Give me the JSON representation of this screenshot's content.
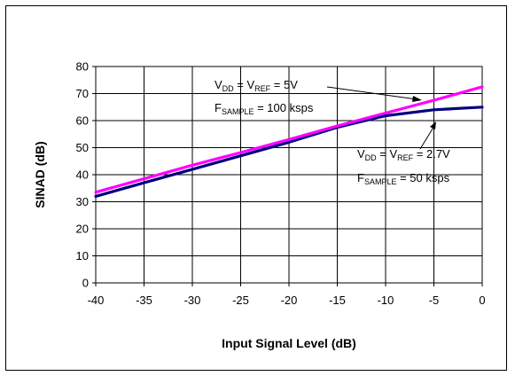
{
  "chart_data": {
    "type": "line",
    "xlabel": "Input Signal Level (dB)",
    "ylabel": "SINAD (dB)",
    "xlim": [
      -40,
      0
    ],
    "ylim": [
      0,
      80
    ],
    "x_ticks": [
      "-40",
      "-35",
      "-30",
      "-25",
      "-20",
      "-15",
      "-10",
      "-5",
      "0"
    ],
    "y_ticks": [
      "0",
      "10",
      "20",
      "30",
      "40",
      "50",
      "60",
      "70",
      "80"
    ],
    "grid": true,
    "series": [
      {
        "name": "VDD = VREF = 5V, FSAMPLE = 100 ksps",
        "color": "#ff00ff",
        "x": [
          -40,
          -35,
          -30,
          -25,
          -20,
          -15,
          -10,
          -5,
          0
        ],
        "y": [
          33.5,
          38.5,
          43.5,
          48.2,
          53,
          58,
          62.8,
          67.5,
          72.5
        ]
      },
      {
        "name": "VDD = VREF = 2.7V, FSAMPLE = 50 ksps",
        "color": "#000080",
        "x": [
          -40,
          -35,
          -30,
          -25,
          -20,
          -15,
          -10,
          -5,
          0
        ],
        "y": [
          32,
          37,
          42,
          47,
          52,
          57.5,
          61.8,
          64,
          65
        ]
      }
    ],
    "annotations": [
      {
        "line1": {
          "main1": "V",
          "sub1": "DD",
          "mid": " = V",
          "sub2": "REF",
          "end": " = 5V"
        },
        "line2": {
          "main": "F",
          "sub": "SAMPLE",
          "end": " = 100 ksps"
        }
      },
      {
        "line1": {
          "main1": "V",
          "sub1": "DD",
          "mid": " = V",
          "sub2": "REF",
          "end": " = 2.7V"
        },
        "line2": {
          "main": "F",
          "sub": "SAMPLE",
          "end": " = 50 ksps"
        }
      }
    ]
  }
}
